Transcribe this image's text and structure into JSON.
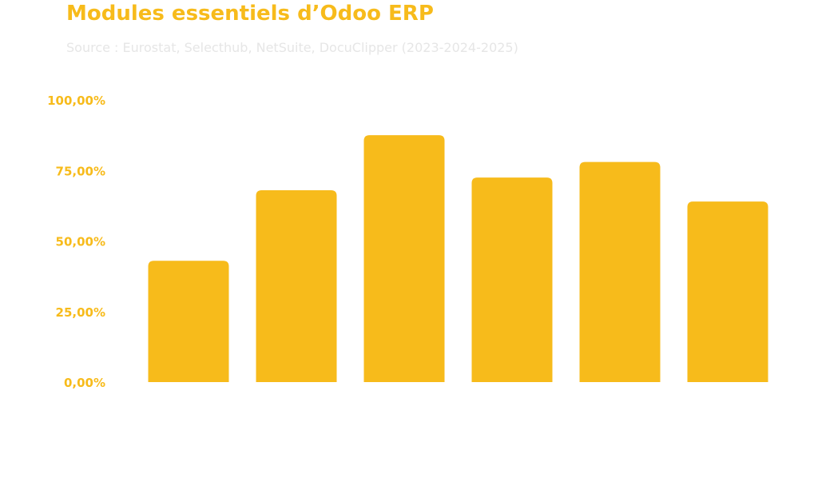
{
  "chart_data": {
    "type": "bar",
    "title": "Modules essentiels d’Odoo ERP",
    "subtitle": "Source : Eurostat, Selecthub, NetSuite, DocuClipper (2023-2024-2025)",
    "xlabel": "",
    "ylabel": "",
    "categories": [
      "",
      "",
      "",
      "",
      "",
      ""
    ],
    "values": [
      43,
      68,
      87.5,
      72.5,
      78,
      64
    ],
    "ylim": [
      0,
      100
    ],
    "y_ticks": [
      {
        "value": 0,
        "label": "0,00%"
      },
      {
        "value": 25,
        "label": "25,00%"
      },
      {
        "value": 50,
        "label": "50,00%"
      },
      {
        "value": 75,
        "label": "75,00%"
      },
      {
        "value": 100,
        "label": "100,00%"
      }
    ],
    "grid": false,
    "legend": "none",
    "colors": {
      "bar": "#f7bb1b",
      "title": "#f7bb1b",
      "ticks": "#f7bb1b",
      "subtitle": "#e6e6e6"
    }
  }
}
